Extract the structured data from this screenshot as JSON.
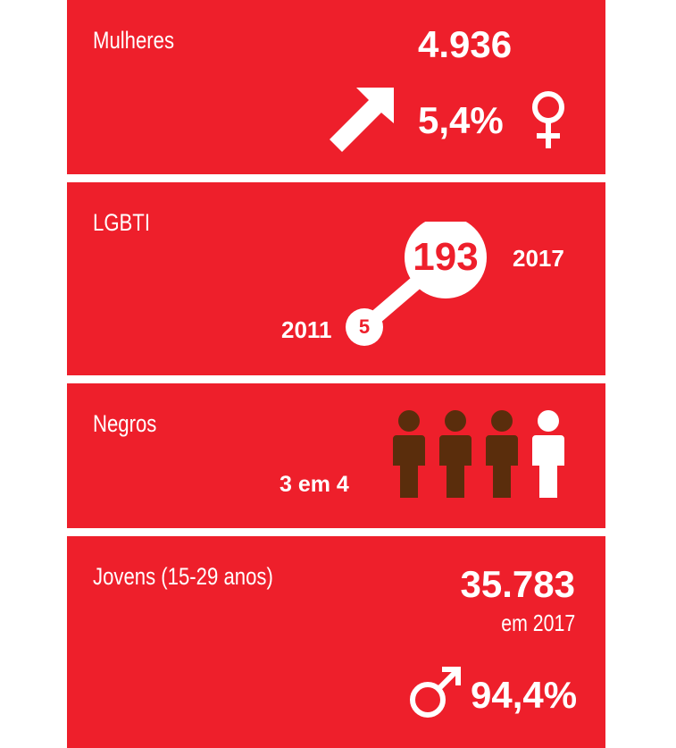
{
  "women": {
    "label": "Mulheres",
    "count": "4.936",
    "percent": "5,4%",
    "trend_icon": "arrow-up-right-icon",
    "gender_icon": "female-symbol-icon"
  },
  "lgbti": {
    "label": "LGBTI",
    "value_2017": "193",
    "year_2017": "2017",
    "value_2011": "5",
    "year_2011": "2011"
  },
  "black": {
    "label": "Negros",
    "ratio": "3 em 4",
    "people_icon": "person-icon",
    "filled_people": 3,
    "total_people": 4
  },
  "youth": {
    "label": "Jovens (15-29 anos)",
    "count": "35.783",
    "year_text": "em 2017",
    "percent": "94,4%",
    "gender_icon": "male-symbol-icon"
  },
  "colors": {
    "panel_bg": "#ee1f2b",
    "text": "#ffffff",
    "person_brown": "#5a2d0c",
    "person_white": "#ffffff"
  }
}
